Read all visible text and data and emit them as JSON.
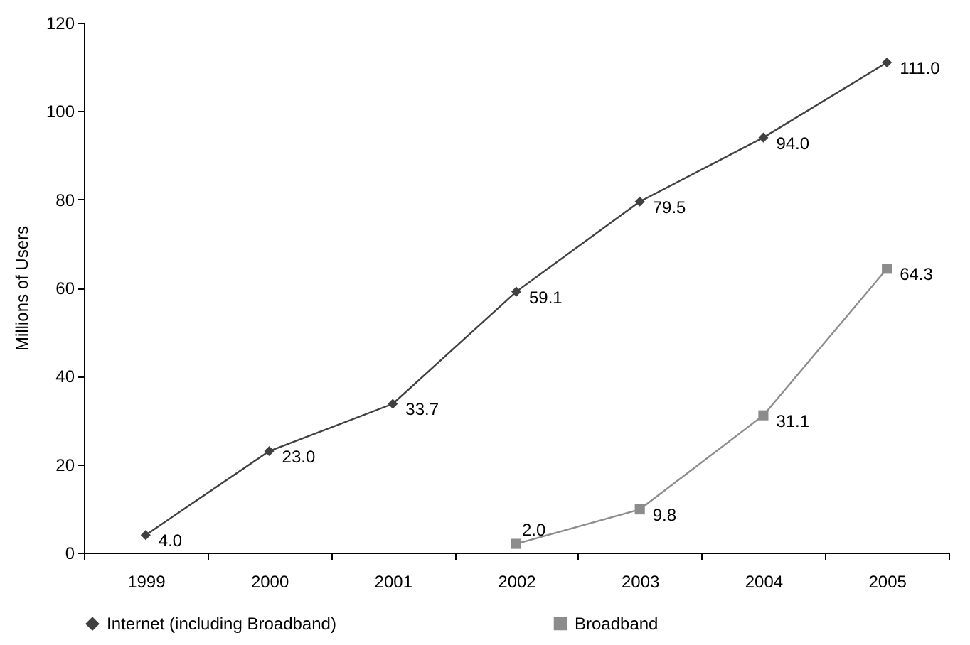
{
  "chart_data": {
    "type": "line",
    "ylabel": "Millions of Users",
    "categories": [
      "1999",
      "2000",
      "2001",
      "2002",
      "2003",
      "2004",
      "2005"
    ],
    "ylim": [
      0,
      120
    ],
    "yticks": [
      0,
      20,
      40,
      60,
      80,
      100,
      120
    ],
    "grid": false,
    "legend": "bottom",
    "series": [
      {
        "name": "Internet (including Broadband)",
        "color": "#404040",
        "marker": "diamond",
        "values": [
          4.0,
          23.0,
          33.7,
          59.1,
          79.5,
          94.0,
          111.0
        ],
        "value_labels": [
          "4.0",
          "23.0",
          "33.7",
          "59.1",
          "79.5",
          "94.0",
          "111.0"
        ]
      },
      {
        "name": "Broadband",
        "color": "#8c8c8c",
        "marker": "square",
        "values": [
          null,
          null,
          null,
          2.0,
          9.8,
          31.1,
          64.3
        ],
        "value_labels": [
          null,
          null,
          null,
          "2.0",
          "9.8",
          "31.1",
          "64.3"
        ]
      }
    ]
  }
}
